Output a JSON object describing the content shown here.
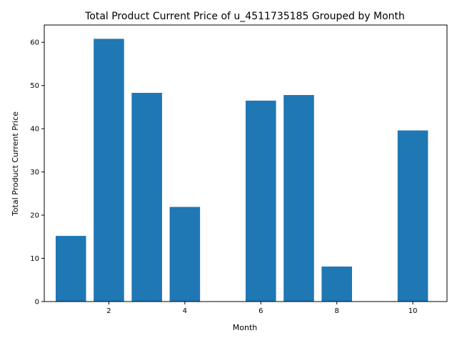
{
  "chart_data": {
    "type": "bar",
    "title": "Total Product Current Price of u_4511735185 Grouped by Month",
    "xlabel": "Month",
    "ylabel": "Total Product Current Price",
    "x": [
      1,
      2,
      3,
      4,
      6,
      7,
      8,
      10
    ],
    "values": [
      15.2,
      60.8,
      48.3,
      21.9,
      46.5,
      47.8,
      8.1,
      39.6
    ],
    "xlim": [
      0.3,
      10.9
    ],
    "ylim": [
      0,
      64
    ],
    "xticks": [
      2,
      4,
      6,
      8,
      10
    ],
    "yticks": [
      0,
      10,
      20,
      30,
      40,
      50,
      60
    ],
    "bar_width": 0.8,
    "grid": false,
    "legend": "none",
    "colors": {
      "bar": "#1f77b4",
      "axis": "#000000"
    }
  }
}
